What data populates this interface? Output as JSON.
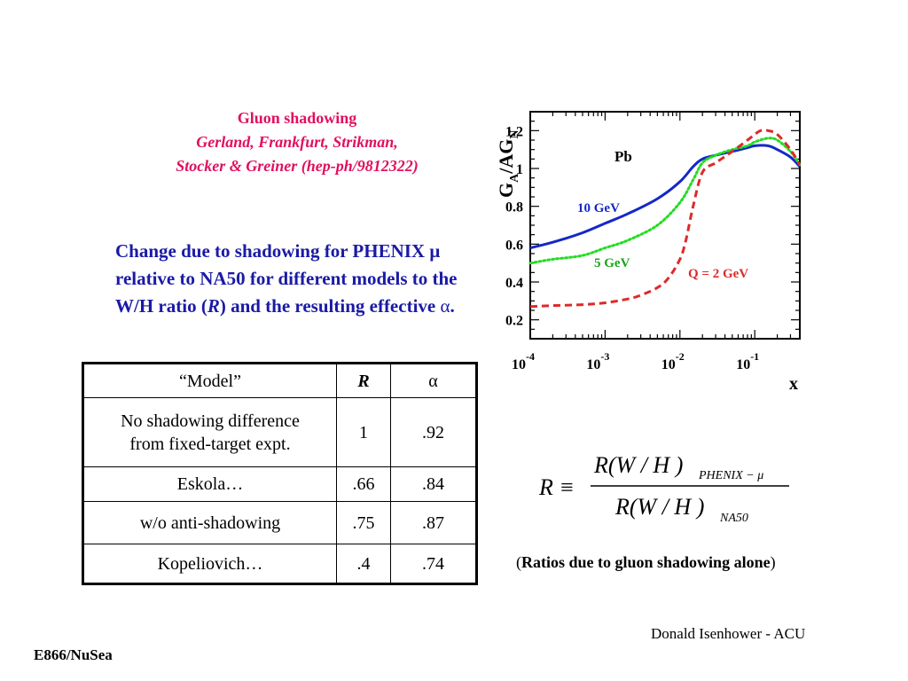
{
  "reference": {
    "line1": "Gluon shadowing",
    "line2": "Gerland, Frankfurt, Strikman,",
    "line3": "Stocker & Greiner (hep-ph/9812322)"
  },
  "description": {
    "text_main": "Change due to shadowing for PHENIX μ relative to NA50 for different models to the W/H ratio (",
    "symbol_r": "R",
    "text_mid": ") and the resulting effective ",
    "symbol_alpha": "α",
    "text_end": "."
  },
  "table": {
    "headers": [
      "“Model”",
      "R",
      "α"
    ],
    "rows": [
      {
        "model_line1": "No shadowing difference",
        "model_line2": "from fixed-target expt.",
        "r": "1",
        "alpha": ".92"
      },
      {
        "model_line1": "Eskola…",
        "model_line2": "",
        "r": ".66",
        "alpha": ".84"
      },
      {
        "model_line1": "w/o anti-shadowing",
        "model_line2": "",
        "r": ".75",
        "alpha": ".87"
      },
      {
        "model_line1": "Kopeliovich…",
        "model_line2": "",
        "r": ".4",
        "alpha": ".74"
      }
    ]
  },
  "chart_data": {
    "type": "line",
    "title": "",
    "xlabel": "x",
    "ylabel": "G_A/AG_N",
    "xscale": "log",
    "xlim": [
      0.0001,
      0.4
    ],
    "ylim": [
      0.1,
      1.3
    ],
    "x_ticks": [
      {
        "base": "10",
        "exp": "-4"
      },
      {
        "base": "10",
        "exp": "-3"
      },
      {
        "base": "10",
        "exp": "-2"
      },
      {
        "base": "10",
        "exp": "-1"
      }
    ],
    "y_ticks": [
      "0.2",
      "0.4",
      "0.6",
      "0.8",
      "1",
      "1.2"
    ],
    "y_tick_values": [
      0.2,
      0.4,
      0.6,
      0.8,
      1.0,
      1.2
    ],
    "annotation": "Pb",
    "series": [
      {
        "name": "10 GeV",
        "color": "#1428c8",
        "dash": "solid",
        "x": [
          0.0001,
          0.0002,
          0.0005,
          0.001,
          0.002,
          0.005,
          0.01,
          0.015,
          0.02,
          0.03,
          0.05,
          0.08,
          0.1,
          0.15,
          0.2,
          0.3,
          0.4
        ],
        "y": [
          0.58,
          0.61,
          0.66,
          0.71,
          0.76,
          0.84,
          0.93,
          1.01,
          1.05,
          1.07,
          1.09,
          1.11,
          1.12,
          1.12,
          1.1,
          1.06,
          1.01
        ]
      },
      {
        "name": "5 GeV",
        "color": "#22dd22",
        "dash": "dotted",
        "x": [
          0.0001,
          0.0002,
          0.0005,
          0.001,
          0.002,
          0.005,
          0.01,
          0.015,
          0.02,
          0.03,
          0.05,
          0.08,
          0.1,
          0.15,
          0.2,
          0.3,
          0.4
        ],
        "y": [
          0.5,
          0.52,
          0.54,
          0.58,
          0.62,
          0.7,
          0.82,
          0.94,
          1.03,
          1.07,
          1.1,
          1.12,
          1.14,
          1.16,
          1.15,
          1.09,
          1.02
        ]
      },
      {
        "name": "Q = 2 GeV",
        "color": "#dd2a2a",
        "dash": "dashed",
        "x": [
          0.0001,
          0.0002,
          0.0005,
          0.001,
          0.002,
          0.003,
          0.005,
          0.007,
          0.01,
          0.012,
          0.015,
          0.02,
          0.03,
          0.05,
          0.08,
          0.1,
          0.12,
          0.15,
          0.2,
          0.3,
          0.4
        ],
        "y": [
          0.27,
          0.275,
          0.28,
          0.29,
          0.31,
          0.33,
          0.37,
          0.42,
          0.52,
          0.62,
          0.8,
          0.98,
          1.03,
          1.09,
          1.15,
          1.18,
          1.2,
          1.2,
          1.18,
          1.1,
          1.02
        ]
      }
    ]
  },
  "equation": {
    "lhs": "R ≡",
    "numerator": "R(W / H )",
    "numerator_sub": "PHENIX − μ",
    "denominator": "R(W / H )",
    "denominator_sub": "NA50"
  },
  "caption": {
    "open": "(",
    "text": "Ratios due to gluon shadowing alone",
    "close": ")"
  },
  "credit": "Donald Isenhower - ACU",
  "footer": "E866/NuSea"
}
